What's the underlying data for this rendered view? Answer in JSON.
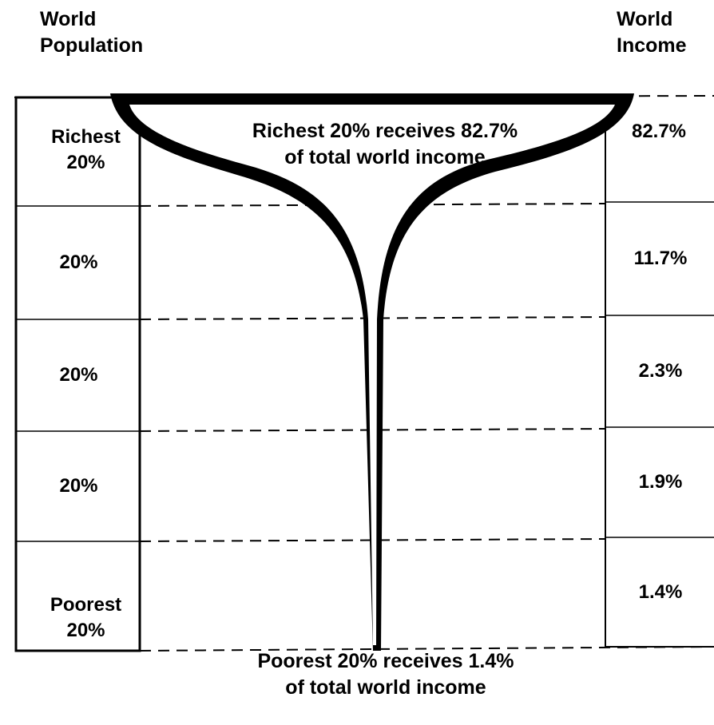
{
  "header": {
    "left": "World Population",
    "right": "World Income"
  },
  "population": [
    "Richest 20%",
    "20%",
    "20%",
    "20%",
    "Poorest 20%"
  ],
  "income": [
    "82.7%",
    "11.7%",
    "2.3%",
    "1.9%",
    "1.4%"
  ],
  "top_note": "Richest 20% receives 82.7% of total world income",
  "bottom_note": "Poorest 20% receives 1.4% of total world income"
}
